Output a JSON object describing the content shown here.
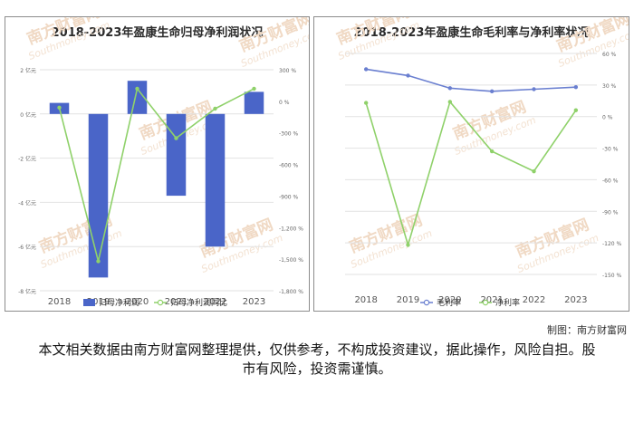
{
  "chart_data": [
    {
      "type": "bar+line",
      "title": "2018-2023年盈康生命归母净利润状况",
      "categories": [
        "2018",
        "2019",
        "2020",
        "2021",
        "2022",
        "2023"
      ],
      "series": [
        {
          "name": "归母净利润",
          "type": "bar",
          "axis": "left",
          "unit": "亿元",
          "values": [
            0.5,
            -7.4,
            1.5,
            -3.7,
            -6.0,
            1.0
          ],
          "color": "#4a65c8"
        },
        {
          "name": "归母净利润同比",
          "type": "line",
          "axis": "right",
          "unit": "%",
          "values": [
            -60,
            -1520,
            120,
            -350,
            -70,
            120
          ],
          "color": "#8fd16a"
        }
      ],
      "y_left": {
        "min": -8,
        "max": 2,
        "ticks": [
          2,
          0,
          -2,
          -4,
          -6,
          -8
        ],
        "tick_labels": [
          "2 亿元",
          "0 亿元",
          "-2 亿元",
          "-4 亿元",
          "-6 亿元",
          "-8 亿元"
        ]
      },
      "y_right": {
        "min": -1800,
        "max": 300,
        "ticks": [
          300,
          0,
          -300,
          -600,
          -900,
          -1200,
          -1500,
          -1800
        ],
        "tick_labels": [
          "300 %",
          "0 %",
          "-300 %",
          "-600 %",
          "-900 %",
          "-1,200 %",
          "-1,500 %",
          "-1,800 %"
        ]
      },
      "grid": true,
      "legend": "bottom"
    },
    {
      "type": "line",
      "title": "2018-2023年盈康生命毛利率与净利率状况",
      "categories": [
        "2018",
        "2019",
        "2020",
        "2021",
        "2022",
        "2023"
      ],
      "series": [
        {
          "name": "毛利率",
          "unit": "%",
          "values": [
            45,
            39,
            27,
            24,
            26,
            28
          ],
          "color": "#6a7fd0"
        },
        {
          "name": "净利率",
          "unit": "%",
          "values": [
            13,
            -122,
            14,
            -33,
            -52,
            6
          ],
          "color": "#8fd16a"
        }
      ],
      "y": {
        "min": -150,
        "max": 60,
        "ticks": [
          60,
          30,
          0,
          -30,
          -60,
          -90,
          -120,
          -150
        ],
        "tick_labels": [
          "60 %",
          "30 %",
          "0 %",
          "-30 %",
          "-60 %",
          "-90 %",
          "-120 %",
          "-150 %"
        ]
      },
      "grid": true,
      "legend": "bottom"
    }
  ],
  "watermark": {
    "brand": "南方财富网",
    "site": "Southmoney.com"
  },
  "footer": {
    "credit": "制图：南方财富网",
    "disclaimer": "本文相关数据由南方财富网整理提供，仅供参考，不构成投资建议，据此操作，风险自担。股市有风险，投资需谨慎。"
  }
}
